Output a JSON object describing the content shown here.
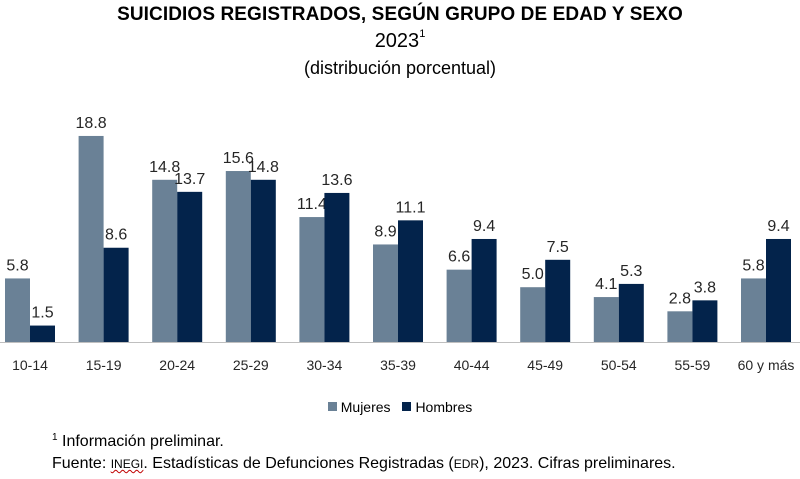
{
  "header": {
    "title": "SUICIDIOS REGISTRADOS, SEGÚN GRUPO DE EDAD Y SEXO",
    "year": "2023",
    "year_mark": "1",
    "subtitle": "(distribución porcentual)"
  },
  "colors": {
    "mujeres": "#6a8196",
    "hombres": "#03234b"
  },
  "chart_data": {
    "type": "bar",
    "title": "SUICIDIOS REGISTRADOS, SEGÚN GRUPO DE EDAD Y SEXO",
    "subtitle": "(distribución porcentual)",
    "categories": [
      "10-14",
      "15-19",
      "20-24",
      "25-29",
      "30-34",
      "35-39",
      "40-44",
      "45-49",
      "50-54",
      "55-59",
      "60 y más"
    ],
    "series": [
      {
        "name": "Mujeres",
        "values": [
          5.8,
          18.8,
          14.8,
          15.6,
          11.4,
          8.9,
          6.6,
          5.0,
          4.1,
          2.8,
          5.8
        ],
        "labels": [
          "5.8",
          "18.8",
          "14.8",
          "15.6",
          "11.4",
          "8.9",
          "6.6",
          "5.0",
          "4.1",
          "2.8",
          "5.8"
        ]
      },
      {
        "name": "Hombres",
        "values": [
          1.5,
          8.6,
          13.7,
          14.8,
          13.6,
          11.1,
          9.4,
          7.5,
          5.3,
          3.8,
          9.4
        ],
        "labels": [
          "1.5",
          "8.6",
          "13.7",
          "14.8",
          "13.6",
          "11.1",
          "9.4",
          "7.5",
          "5.3",
          "3.8",
          "9.4"
        ]
      }
    ],
    "ylim": [
      0,
      20
    ],
    "grid": false,
    "legend": "bottom"
  },
  "legend": {
    "mujeres": "Mujeres",
    "hombres": "Hombres"
  },
  "footnote": {
    "mark": "1",
    "text": " Información preliminar."
  },
  "source": {
    "prefix": "Fuente: ",
    "org": "INEGI",
    "middle": ". Estadísticas de Defunciones Registradas (",
    "acronym": "EDR",
    "suffix": "), 2023. Cifras preliminares."
  }
}
